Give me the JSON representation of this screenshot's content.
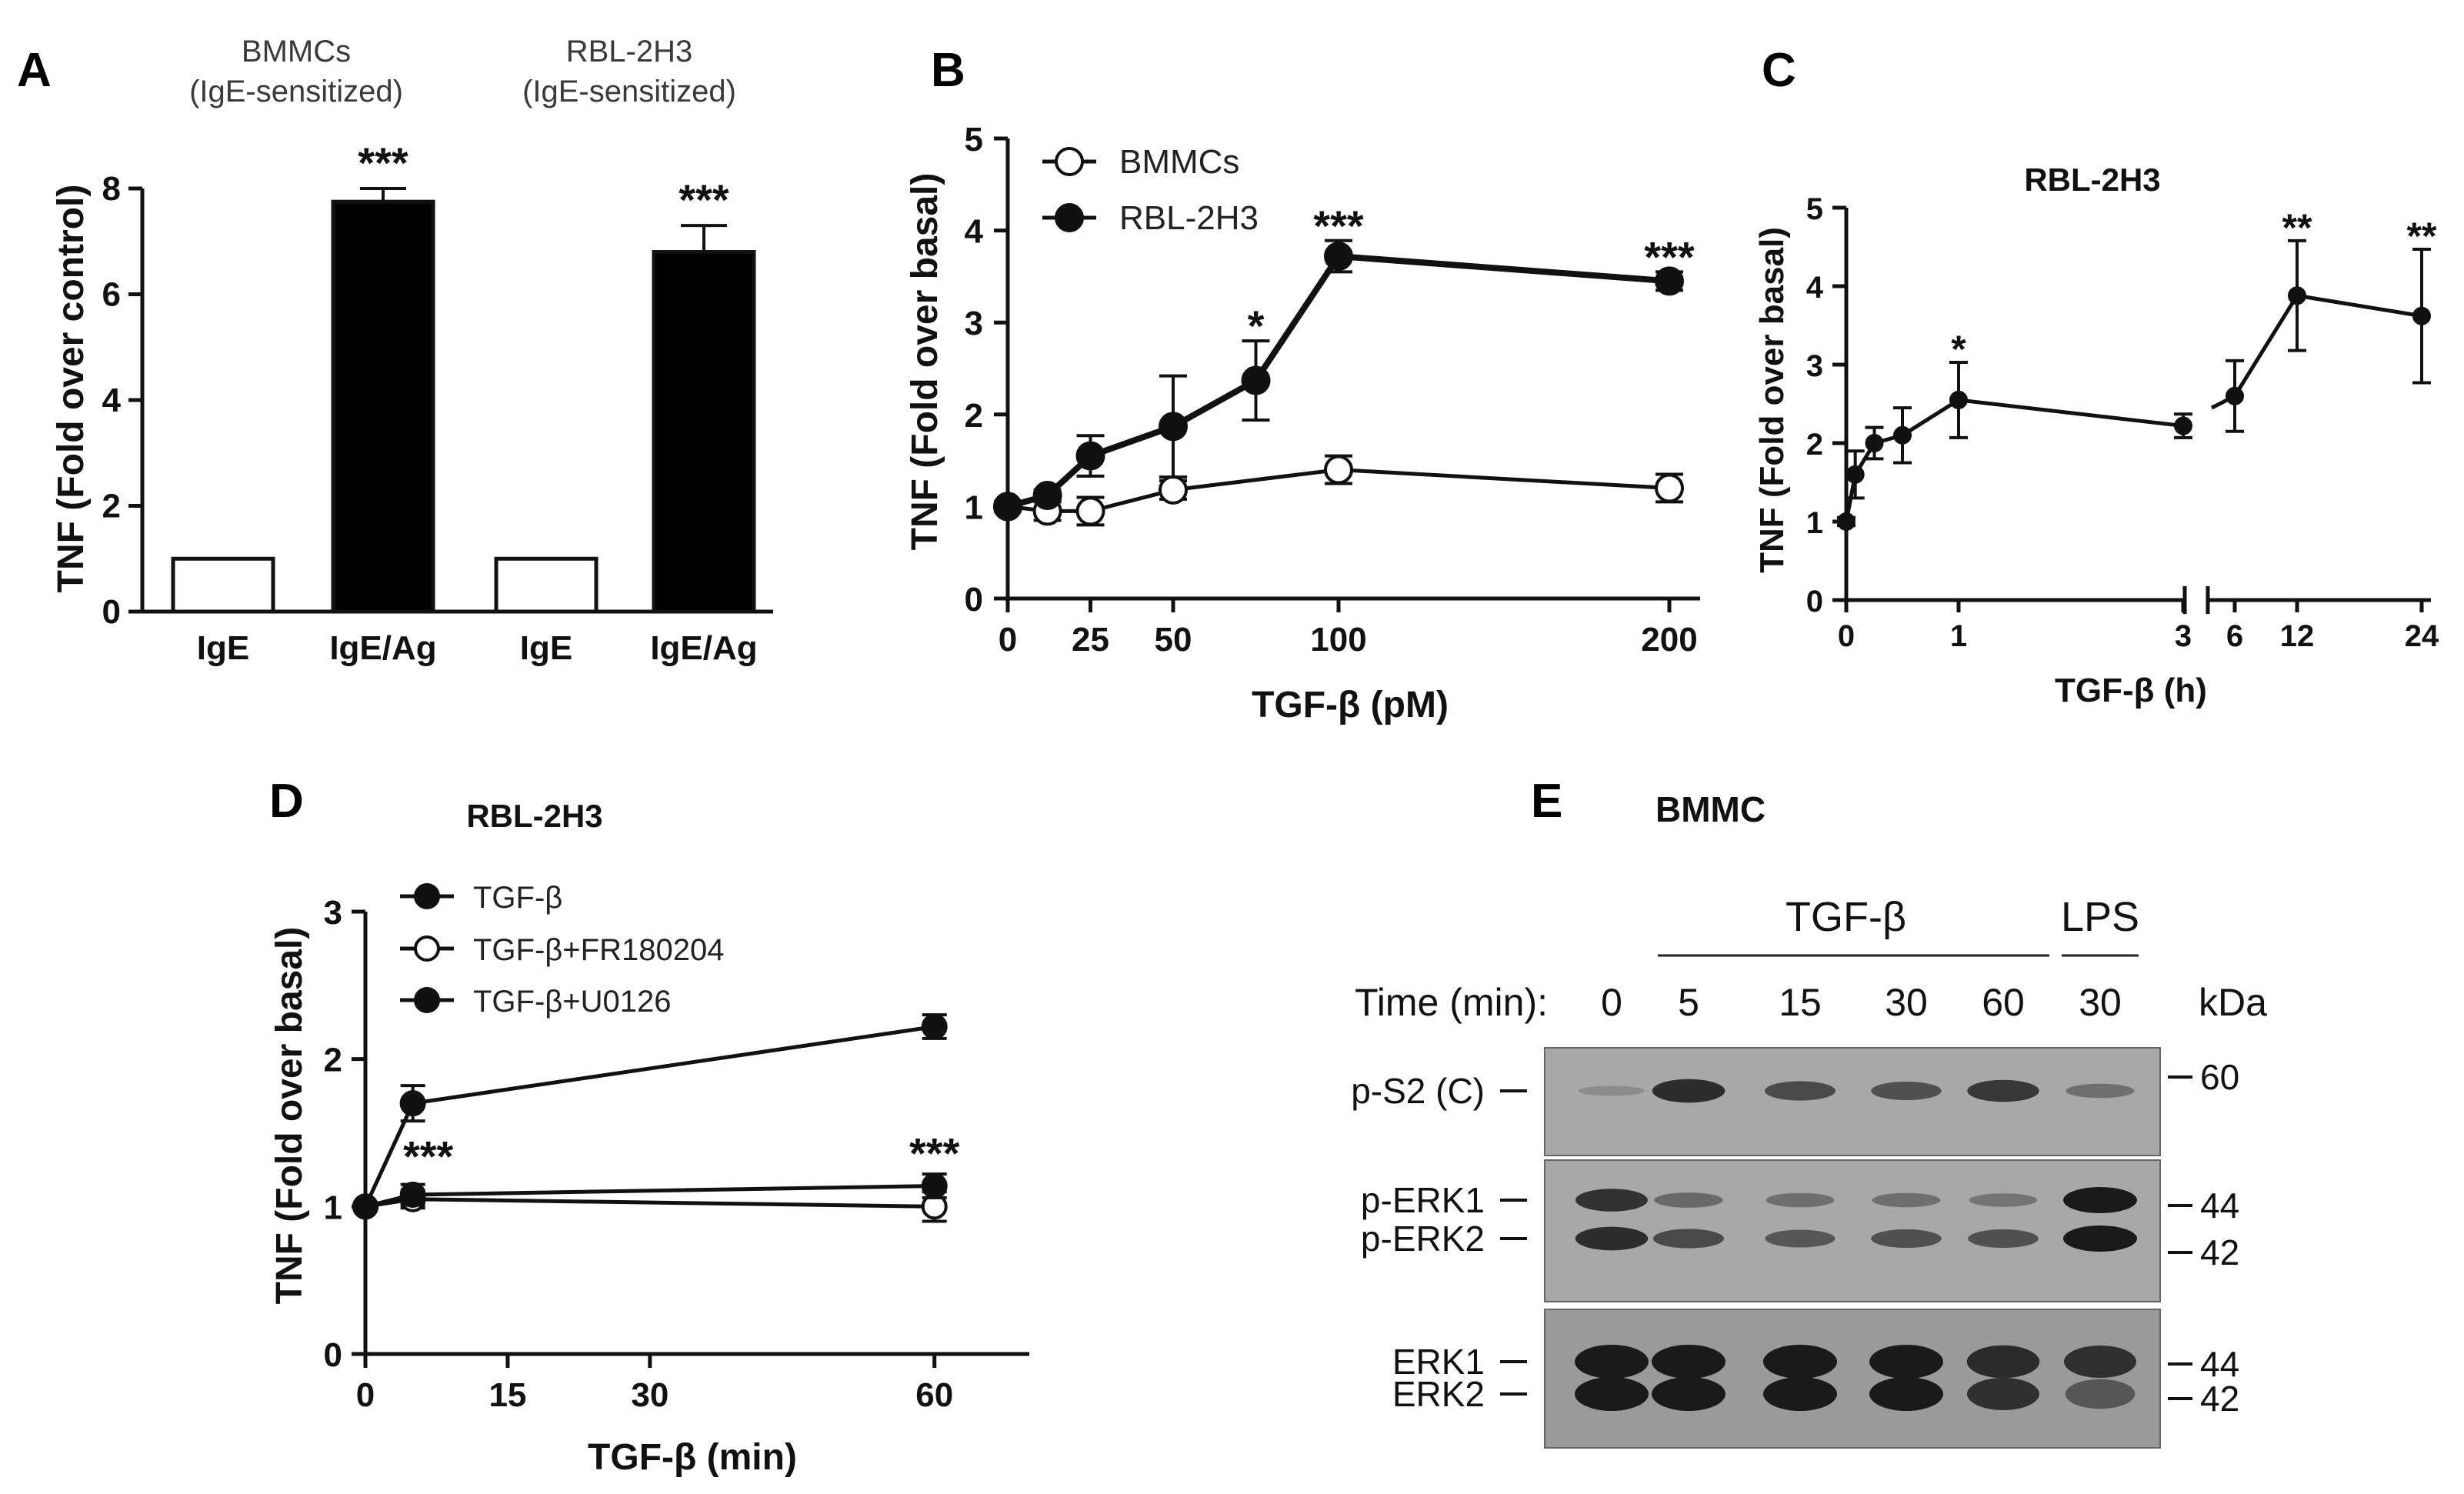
{
  "chart_data": [
    {
      "panel": "A",
      "type": "bar",
      "header_groups": [
        {
          "line1": "BMMCs",
          "line2": "(IgE-sensitized)"
        },
        {
          "line1": "RBL-2H3",
          "line2": "(IgE-sensitized)"
        }
      ],
      "categories": [
        "IgE",
        "IgE/Ag",
        "IgE",
        "IgE/Ag"
      ],
      "values": [
        1.0,
        7.75,
        1.0,
        6.8
      ],
      "errors": [
        0.0,
        0.25,
        0.0,
        0.5
      ],
      "bar_colors": [
        "#ffffff",
        "#000000",
        "#ffffff",
        "#000000"
      ],
      "significance": [
        "",
        "***",
        "",
        "***"
      ],
      "ylabel": "TNF (Fold over control)",
      "ylim": [
        0,
        8
      ],
      "yticks": [
        0,
        2,
        4,
        6,
        8
      ]
    },
    {
      "panel": "B",
      "type": "line",
      "xlabel": "TGF-β (pM)",
      "ylabel": "TNF (Fold over basal)",
      "xlim": [
        0,
        200
      ],
      "ylim": [
        0,
        5
      ],
      "xticks": [
        0,
        25,
        50,
        100,
        200
      ],
      "yticks": [
        0,
        1,
        2,
        3,
        4,
        5
      ],
      "legend_position": "top-left",
      "series": [
        {
          "name": "BMMCs",
          "marker": "open",
          "x": [
            0,
            12,
            25,
            50,
            100,
            200
          ],
          "y": [
            1.0,
            0.95,
            0.95,
            1.18,
            1.4,
            1.2
          ],
          "err": [
            0.05,
            0.1,
            0.15,
            0.1,
            0.15,
            0.15
          ]
        },
        {
          "name": "RBL-2H3",
          "marker": "filled",
          "x": [
            0,
            12,
            25,
            50,
            75,
            100,
            200
          ],
          "y": [
            1.0,
            1.12,
            1.55,
            1.87,
            2.37,
            3.72,
            3.45
          ],
          "err": [
            0.05,
            0.06,
            0.22,
            0.55,
            0.43,
            0.17,
            0.1
          ]
        }
      ],
      "significance": [
        {
          "x": 75,
          "label": "*",
          "y": 2.8
        },
        {
          "x": 100,
          "label": "***",
          "y": 3.89
        },
        {
          "x": 200,
          "label": "***",
          "y": 3.55
        }
      ]
    },
    {
      "panel": "C",
      "type": "line",
      "title": "RBL-2H3",
      "xlabel": "TGF-β (h)",
      "ylabel": "TNF (Fold over basal)",
      "ylim": [
        0,
        5
      ],
      "yticks": [
        0,
        1,
        2,
        3,
        4,
        5
      ],
      "xticks_left": [
        0,
        1,
        3
      ],
      "xticks_right": [
        6,
        12,
        24
      ],
      "broken_axis": true,
      "series": [
        {
          "name": "",
          "marker": "filled",
          "segment": "left",
          "x": [
            0,
            0.08,
            0.25,
            0.5,
            1,
            3
          ],
          "y": [
            1.0,
            1.6,
            2.0,
            2.1,
            2.55,
            2.22
          ],
          "err": [
            0.05,
            0.3,
            0.2,
            0.35,
            0.48,
            0.15
          ]
        },
        {
          "name": "",
          "marker": "filled",
          "segment": "right",
          "x": [
            6,
            12,
            24
          ],
          "y": [
            2.6,
            3.88,
            3.62
          ],
          "err": [
            0.45,
            0.7,
            0.85
          ]
        }
      ],
      "significance": [
        {
          "x": 1,
          "segment": "left",
          "label": "*",
          "y": 3.03
        },
        {
          "x": 12,
          "segment": "right",
          "label": "**",
          "y": 4.58
        },
        {
          "x": 24,
          "segment": "right",
          "label": "**",
          "y": 4.47
        }
      ]
    },
    {
      "panel": "D",
      "type": "line",
      "title": "RBL-2H3",
      "xlabel": "TGF-β (min)",
      "ylabel": "TNF (Fold over basal)",
      "xlim": [
        0,
        70
      ],
      "ylim": [
        0,
        3
      ],
      "xticks": [
        0,
        15,
        30,
        60
      ],
      "yticks": [
        0,
        1,
        2,
        3
      ],
      "legend_position": "top-left",
      "series": [
        {
          "name": "TGF-β",
          "marker": "filled",
          "x": [
            0,
            5,
            60
          ],
          "y": [
            1.0,
            1.7,
            2.22
          ],
          "err": [
            0.02,
            0.12,
            0.08
          ]
        },
        {
          "name": "TGF-β+FR180204",
          "marker": "open",
          "x": [
            0,
            5,
            60
          ],
          "y": [
            1.0,
            1.05,
            1.0
          ],
          "err": [
            0.02,
            0.06,
            0.1
          ]
        },
        {
          "name": "TGF-β+U0126",
          "marker": "filled",
          "x": [
            0,
            5,
            60
          ],
          "y": [
            1.0,
            1.08,
            1.14
          ],
          "err": [
            0.02,
            0.07,
            0.08
          ]
        }
      ],
      "significance": [
        {
          "x": 5,
          "label": "***",
          "y": 1.24
        },
        {
          "x": 60,
          "label": "***",
          "y": 1.26
        }
      ]
    },
    {
      "panel": "E",
      "type": "blot",
      "title": "BMMC",
      "treatment_groups": [
        {
          "label": "TGF-β",
          "lanes": [
            1,
            2,
            3,
            4
          ]
        },
        {
          "label": "LPS",
          "lanes": [
            5
          ]
        }
      ],
      "row_label": "Time (min):",
      "lane_labels": [
        "0",
        "5",
        "15",
        "30",
        "60",
        "30"
      ],
      "kda_label": "kDa",
      "blots": [
        {
          "bands": [
            "p-S2 (C)"
          ],
          "markers": [
            "60"
          ],
          "intensity": [
            [
              0.05,
              0.85,
              0.6,
              0.55,
              0.75,
              0.3
            ]
          ]
        },
        {
          "bands": [
            "p-ERK1",
            "p-ERK2"
          ],
          "markers": [
            "44",
            "42"
          ],
          "intensity": [
            [
              0.8,
              0.35,
              0.3,
              0.3,
              0.25,
              1.0
            ],
            [
              0.85,
              0.6,
              0.5,
              0.55,
              0.55,
              1.0
            ]
          ]
        },
        {
          "bands": [
            "ERK1",
            "ERK2"
          ],
          "markers": [
            "44",
            "42"
          ],
          "intensity": [
            [
              1.0,
              1.0,
              1.0,
              1.0,
              0.85,
              0.8
            ],
            [
              1.0,
              1.0,
              1.0,
              1.0,
              0.8,
              0.45
            ]
          ]
        }
      ]
    }
  ],
  "panel_letters": [
    "A",
    "B",
    "C",
    "D",
    "E"
  ]
}
